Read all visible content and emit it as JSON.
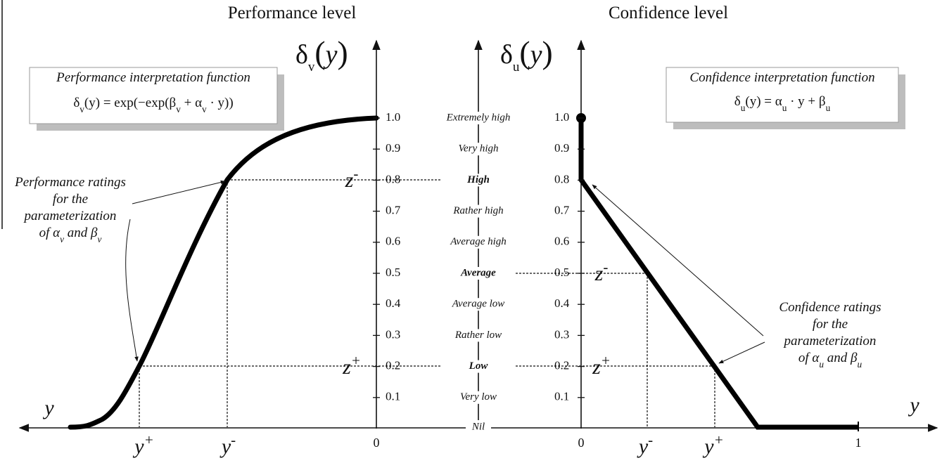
{
  "left": {
    "title": "Performance level",
    "axis_label": [
      "δ",
      "v",
      "(",
      "y",
      ")"
    ],
    "function_box": {
      "title": "Performance interpretation function",
      "formula": [
        "δ",
        "v",
        "(y) = exp(−exp(β",
        "v",
        " + α",
        "v",
        " · y))"
      ]
    },
    "annotation": [
      "Performance ratings",
      "for the",
      "parameterization",
      [
        "of α",
        "v",
        " and β",
        "v"
      ]
    ],
    "ticks": [
      "0.1",
      "0.2",
      "0.3",
      "0.4",
      "0.5",
      "0.6",
      "0.7",
      "0.8",
      "0.9",
      "1.0"
    ],
    "origin_label": "0",
    "x_axis_label": "y",
    "y_plus": [
      "y",
      "+"
    ],
    "y_minus": [
      "y",
      "-"
    ],
    "z_minus": [
      "z",
      "-"
    ],
    "z_plus": [
      "z",
      "+"
    ]
  },
  "scale": [
    "Nil",
    "Very low",
    "Low",
    "Rather low",
    "Average low",
    "Average",
    "Average high",
    "Rather high",
    "High",
    "Very high",
    "Extremely high"
  ],
  "right": {
    "title": "Confidence level",
    "axis_label": [
      "δ",
      "u",
      "(",
      "y",
      ")"
    ],
    "function_box": {
      "title": "Confidence interpretation function",
      "formula": [
        "δ",
        "u",
        "(y) = α",
        "u",
        " · y + β",
        "u"
      ]
    },
    "annotation": [
      "Confidence ratings",
      "for the",
      "parameterization",
      [
        "of α",
        "u",
        " and β",
        "u"
      ]
    ],
    "ticks": [
      "0.1",
      "0.2",
      "0.3",
      "0.4",
      "0.5",
      "0.6",
      "0.7",
      "0.8",
      "0.9",
      "1.0"
    ],
    "origin_label": "0",
    "end_label": "1",
    "x_axis_label": "y",
    "y_minus": [
      "y",
      "-"
    ],
    "y_plus": [
      "y",
      "+"
    ],
    "z_minus": [
      "z",
      "-"
    ],
    "z_plus": [
      "z",
      "+"
    ]
  }
}
